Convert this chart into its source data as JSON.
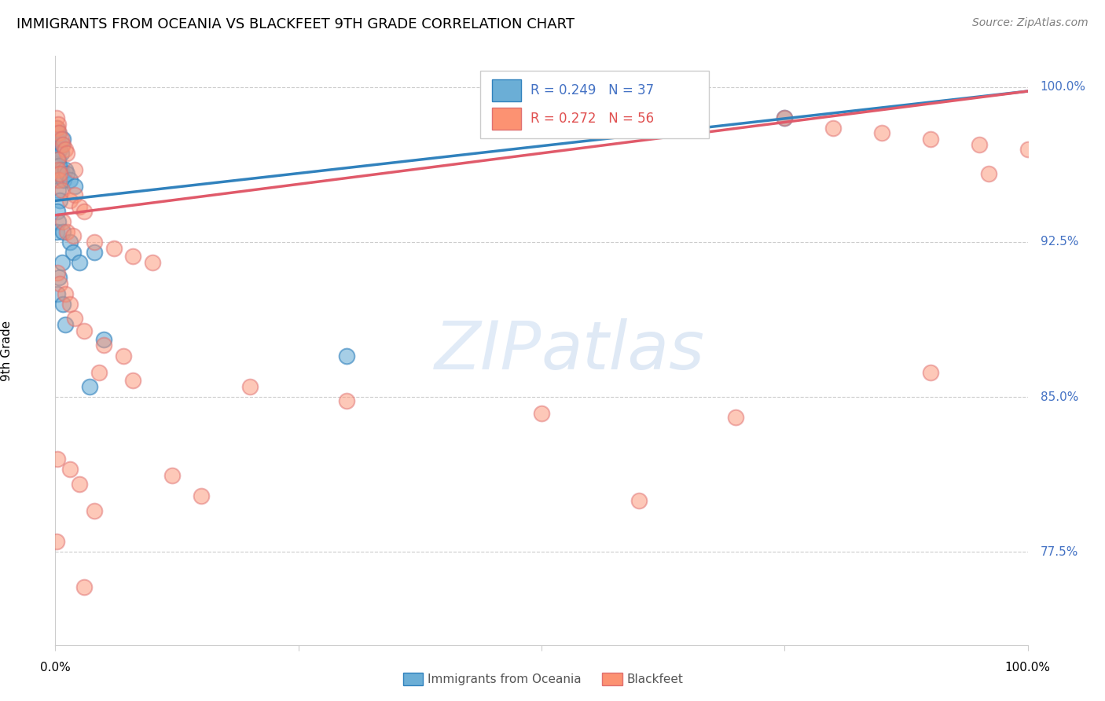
{
  "title": "IMMIGRANTS FROM OCEANIA VS BLACKFEET 9TH GRADE CORRELATION CHART",
  "source": "Source: ZipAtlas.com",
  "ylabel": "9th Grade",
  "ylabel_right_labels": [
    "100.0%",
    "92.5%",
    "85.0%",
    "77.5%"
  ],
  "ylabel_right_values": [
    1.0,
    0.925,
    0.85,
    0.775
  ],
  "legend_blue_r": "R = 0.249",
  "legend_blue_n": "N = 37",
  "legend_pink_r": "R = 0.272",
  "legend_pink_n": "N = 56",
  "blue_color": "#6baed6",
  "pink_color": "#fc9272",
  "line_blue": "#3182bd",
  "line_pink": "#e05a6a",
  "watermark_zip": "ZIP",
  "watermark_atlas": "atlas",
  "blue_points": [
    [
      0.001,
      0.98
    ],
    [
      0.002,
      0.975
    ],
    [
      0.003,
      0.978
    ],
    [
      0.004,
      0.972
    ],
    [
      0.005,
      0.97
    ],
    [
      0.006,
      0.968
    ],
    [
      0.007,
      0.972
    ],
    [
      0.008,
      0.975
    ],
    [
      0.003,
      0.965
    ],
    [
      0.004,
      0.962
    ],
    [
      0.002,
      0.958
    ],
    [
      0.001,
      0.955
    ],
    [
      0.006,
      0.96
    ],
    [
      0.003,
      0.95
    ],
    [
      0.009,
      0.955
    ],
    [
      0.01,
      0.96
    ],
    [
      0.012,
      0.958
    ],
    [
      0.015,
      0.955
    ],
    [
      0.02,
      0.952
    ],
    [
      0.005,
      0.945
    ],
    [
      0.002,
      0.94
    ],
    [
      0.003,
      0.935
    ],
    [
      0.001,
      0.93
    ],
    [
      0.008,
      0.93
    ],
    [
      0.015,
      0.925
    ],
    [
      0.018,
      0.92
    ],
    [
      0.025,
      0.915
    ],
    [
      0.04,
      0.92
    ],
    [
      0.007,
      0.915
    ],
    [
      0.004,
      0.908
    ],
    [
      0.002,
      0.9
    ],
    [
      0.008,
      0.895
    ],
    [
      0.01,
      0.885
    ],
    [
      0.05,
      0.878
    ],
    [
      0.035,
      0.855
    ],
    [
      0.75,
      0.985
    ],
    [
      0.3,
      0.87
    ]
  ],
  "pink_points": [
    [
      0.001,
      0.985
    ],
    [
      0.002,
      0.98
    ],
    [
      0.003,
      0.982
    ],
    [
      0.004,
      0.978
    ],
    [
      0.006,
      0.975
    ],
    [
      0.008,
      0.972
    ],
    [
      0.01,
      0.97
    ],
    [
      0.012,
      0.968
    ],
    [
      0.002,
      0.965
    ],
    [
      0.003,
      0.96
    ],
    [
      0.004,
      0.955
    ],
    [
      0.005,
      0.958
    ],
    [
      0.007,
      0.95
    ],
    [
      0.015,
      0.945
    ],
    [
      0.02,
      0.948
    ],
    [
      0.025,
      0.942
    ],
    [
      0.03,
      0.94
    ],
    [
      0.008,
      0.935
    ],
    [
      0.012,
      0.93
    ],
    [
      0.018,
      0.928
    ],
    [
      0.04,
      0.925
    ],
    [
      0.06,
      0.922
    ],
    [
      0.08,
      0.918
    ],
    [
      0.1,
      0.915
    ],
    [
      0.002,
      0.91
    ],
    [
      0.005,
      0.905
    ],
    [
      0.01,
      0.9
    ],
    [
      0.015,
      0.895
    ],
    [
      0.02,
      0.888
    ],
    [
      0.03,
      0.882
    ],
    [
      0.05,
      0.875
    ],
    [
      0.07,
      0.87
    ],
    [
      0.045,
      0.862
    ],
    [
      0.2,
      0.855
    ],
    [
      0.3,
      0.848
    ],
    [
      0.5,
      0.842
    ],
    [
      0.002,
      0.82
    ],
    [
      0.015,
      0.815
    ],
    [
      0.025,
      0.808
    ],
    [
      0.15,
      0.802
    ],
    [
      0.04,
      0.795
    ],
    [
      0.6,
      0.8
    ],
    [
      0.75,
      0.985
    ],
    [
      0.8,
      0.98
    ],
    [
      0.85,
      0.978
    ],
    [
      0.9,
      0.975
    ],
    [
      0.95,
      0.972
    ],
    [
      1.0,
      0.97
    ],
    [
      0.08,
      0.858
    ],
    [
      0.001,
      0.78
    ],
    [
      0.12,
      0.812
    ],
    [
      0.02,
      0.96
    ],
    [
      0.7,
      0.84
    ],
    [
      0.9,
      0.862
    ],
    [
      0.96,
      0.958
    ],
    [
      0.03,
      0.758
    ]
  ],
  "blue_line_x": [
    0.0,
    1.0
  ],
  "blue_line_y": [
    0.945,
    0.998
  ],
  "pink_line_x": [
    0.0,
    1.0
  ],
  "pink_line_y": [
    0.938,
    0.998
  ],
  "xmin": 0.0,
  "xmax": 1.0,
  "ymin": 0.73,
  "ymax": 1.015
}
